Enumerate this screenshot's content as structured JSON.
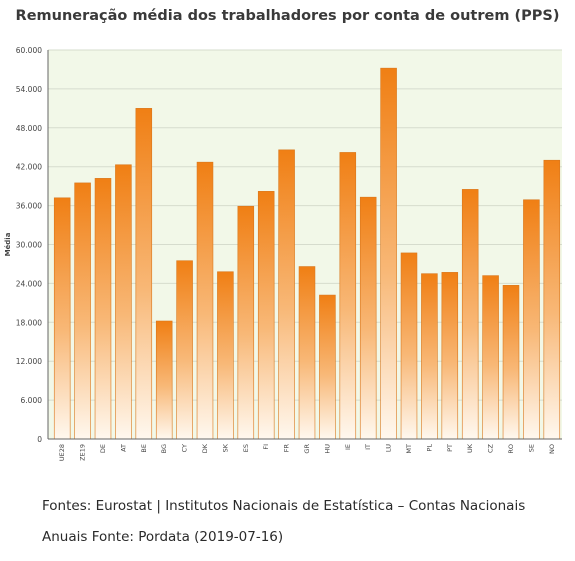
{
  "title": "Remuneração média dos trabalhadores por conta de outrem (PPS)",
  "footer": {
    "line1": "Fontes: Eurostat | Institutos Nacionais de Estatística – Contas Nacionais",
    "line2": "Anuais  Fonte: Pordata (2019-07-16)"
  },
  "colors": {
    "plot_background": "#f2f8e8",
    "bar_top": "#f07f14",
    "bar_bottom": "#fff8ef",
    "grid": "#d6dccd",
    "axis": "#666666"
  },
  "chart_data": {
    "type": "bar",
    "ylabel": "Média",
    "ylim": [
      0,
      60000
    ],
    "yticks": [
      "0",
      "6.000",
      "12.000",
      "18.000",
      "24.000",
      "30.000",
      "36.000",
      "42.000",
      "48.000",
      "54.000",
      "60.000"
    ],
    "grid": true,
    "categories": [
      "UE28",
      "ZE19",
      "DE",
      "AT",
      "BE",
      "BG",
      "CY",
      "DK",
      "SK",
      "ES",
      "FI",
      "FR",
      "GR",
      "HU",
      "IE",
      "IT",
      "LU",
      "MT",
      "PL",
      "PT",
      "UK",
      "CZ",
      "RO",
      "SE",
      "NO"
    ],
    "values": [
      37200,
      39500,
      40200,
      42300,
      51000,
      18200,
      27500,
      42700,
      25800,
      35900,
      38200,
      44600,
      26600,
      22200,
      44200,
      37300,
      57200,
      28700,
      25500,
      25700,
      38500,
      25200,
      23700,
      36900,
      43000
    ]
  }
}
